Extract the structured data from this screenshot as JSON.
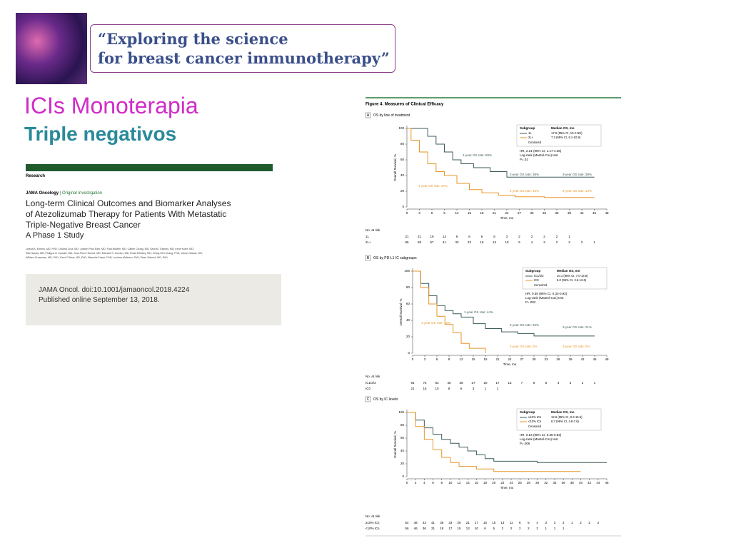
{
  "banner": {
    "quote_lines": [
      "“Exploring the science",
      "for breast cancer immunotherapy”"
    ]
  },
  "header": {
    "title": "ICIs Monoterapia",
    "subtitle": "Triple negativos"
  },
  "article": {
    "section": "Research",
    "journal": "JAMA Oncology",
    "category": "Original Investigation",
    "title_lines": [
      "Long-term Clinical Outcomes and Biomarker Analyses",
      "of Atezolizumab Therapy for Patients With Metastatic",
      "Triple-Negative Breast Cancer"
    ],
    "subtitle": "A Phase 1 Study",
    "authors": [
      "Leisha A. Emens, MD, PhD; Cristina Cruz, MD; Joseph Paul Eder, MD; Fadi Braiteh, MD; Cathie Chung, MD; Sara M. Tolaney, MD; Irene Kuter, MD;",
      "Rita Nanda, MD; Philippe A. Cassier, MD; Jean-Pierre Delord, MD; Michael S. Gordon, MD; Ehab ElGabry, MD; Ching-Wei Chang, PhD; Indrani Sarkar, MS;",
      "William Grossman, MD, PhD; Carol O'Hear, MD, PhD; Marcella Fassò, PhD; Luciana Molinero, PhD; Peter Schmid, MD, PhD"
    ],
    "citation": "JAMA Oncol. doi:10.1001/jamaoncol.2018.4224",
    "published": "Published online September 13, 2018."
  },
  "figure": {
    "title": "Figure 4. Measures of Clinical Efficacy",
    "x_label": "Time, mo",
    "y_label": "Overall Survival, %",
    "at_risk_label": "No. at risk",
    "legend_header": [
      "Subgroup",
      "Median OS, mo"
    ],
    "censored": "Censored",
    "test": "Log-rank (Mantel-Cox) test",
    "panels": [
      {
        "letter": "A",
        "title": "OS by line of treatment",
        "xlim": [
          0,
          48
        ],
        "xticks": [
          0,
          3,
          6,
          9,
          12,
          15,
          18,
          21,
          24,
          27,
          30,
          33,
          36,
          39,
          42,
          45,
          48
        ],
        "ylim": [
          0,
          100
        ],
        "yticks": [
          0,
          20,
          40,
          60,
          80,
          100
        ],
        "series": [
          {
            "name": "1L",
            "median": "17.6 (95% CI, 10.2-NE)",
            "color": "#3d5a5a",
            "x": [
              0,
              3,
              5,
              7,
              9,
              11,
              13,
              16,
              20,
              24,
              45
            ],
            "values": [
              100,
              100,
              90,
              80,
              70,
              60,
              55,
              50,
              45,
              38,
              38
            ],
            "at_risk": [
              21,
              21,
              19,
              14,
              9,
              8,
              6,
              5,
              3,
              2,
              2,
              2,
              2,
              1
            ]
          },
          {
            "name": "2L+",
            "median": "7.3 (95% CI, 6.1-10.8)",
            "color": "#e8962a",
            "x": [
              0,
              1,
              3,
              5,
              7,
              9,
              12,
              15,
              18,
              22,
              26,
              33,
              45
            ],
            "values": [
              100,
              85,
              70,
              55,
              45,
              40,
              30,
              22,
              18,
              15,
              13,
              12,
              12
            ],
            "at_risk": [
              95,
              69,
              57,
              41,
              33,
              23,
              16,
              13,
              10,
              5,
              4,
              3,
              2,
              2,
              2,
              1
            ]
          }
        ],
        "hr": "HR, 2.21 (95% CI, 1.17-4.36)",
        "p": "P=.01",
        "annotations": [
          "1-year OS rate: 59%",
          "1-year OS rate: 37%",
          "2-year OS rate: 38%",
          "2-year OS rate: 15%",
          "3-year OS rate: 38%",
          "3-year OS rate: 12%"
        ]
      },
      {
        "letter": "B",
        "title": "OS by PD-L1 IC subgroups",
        "xlim": [
          0,
          48
        ],
        "xticks": [
          0,
          3,
          6,
          9,
          12,
          15,
          18,
          21,
          24,
          27,
          30,
          33,
          36,
          39,
          42,
          45,
          48
        ],
        "ylim": [
          0,
          100
        ],
        "yticks": [
          0,
          20,
          40,
          60,
          80,
          100
        ],
        "series": [
          {
            "name": "IC1/2/3",
            "median": "10.1 (95% CI, 7.0-13.8)",
            "color": "#3d5a5a",
            "x": [
              0,
              2,
              4,
              6,
              8,
              10,
              12,
              15,
              18,
              22,
              26,
              30,
              45
            ],
            "values": [
              100,
              85,
              70,
              58,
              52,
              48,
              44,
              36,
              30,
              26,
              24,
              21,
              21
            ],
            "at_risk": [
              91,
              72,
              63,
              45,
              35,
              27,
              20,
              17,
              13,
              7,
              6,
              5,
              4,
              3,
              2,
              1
            ]
          },
          {
            "name": "IC0",
            "median": "6.0 (95% CI, 2.6-12.6)",
            "color": "#e8962a",
            "x": [
              0,
              2,
              4,
              6,
              8,
              10,
              12,
              14,
              16,
              18
            ],
            "values": [
              100,
              80,
              60,
              45,
              35,
              25,
              12,
              6,
              6,
              0
            ],
            "at_risk": [
              21,
              15,
              10,
              8,
              6,
              3,
              1,
              1
            ]
          }
        ],
        "hr": "HR, 0.55 (95% CI, 0.33-0.92)",
        "p": "P=.002",
        "annotations": [
          "1-year OS rate: 44%",
          "1-year OS rate: 12%",
          "2-year OS rate: 25%",
          "2-year OS rate: 0%",
          "3-year OS rate: 21%",
          "3-year OS rate: 0%"
        ]
      },
      {
        "letter": "C",
        "title": "OS by IC levels",
        "xlim": [
          0,
          46
        ],
        "xticks": [
          0,
          2,
          4,
          6,
          8,
          10,
          12,
          14,
          16,
          18,
          20,
          22,
          24,
          26,
          28,
          30,
          32,
          34,
          36,
          38,
          40,
          42,
          44,
          46
        ],
        "ylim": [
          0,
          100
        ],
        "yticks": [
          0,
          20,
          40,
          60,
          80,
          100
        ],
        "series": [
          {
            "name": "≥10% ICs",
            "median": "12.6 (95% CI, 9.3-15.5)",
            "color": "#3d5a5a",
            "x": [
              0,
              2,
              4,
              6,
              8,
              10,
              12,
              14,
              16,
              18,
              20,
              24,
              30,
              46
            ],
            "values": [
              100,
              88,
              76,
              66,
              58,
              52,
              46,
              40,
              34,
              28,
              24,
              24,
              22,
              22
            ],
            "at_risk": [
              54,
              48,
              43,
              41,
              36,
              33,
              26,
              21,
              17,
              15,
              15,
              13,
              11,
              6,
              5,
              4,
              3,
              3,
              3,
              1,
              2,
              2,
              2
            ]
          },
          {
            "name": "<10% ICs",
            "median": "6.7 (95% CI, 4.9-7.6)",
            "color": "#e8962a",
            "x": [
              0,
              2,
              4,
              6,
              8,
              10,
              12,
              16,
              20,
              40
            ],
            "values": [
              100,
              78,
              58,
              42,
              30,
              22,
              16,
              12,
              8,
              8
            ],
            "at_risk": [
              56,
              46,
              36,
              31,
              19,
              17,
              15,
              13,
              10,
              6,
              5,
              2,
              2,
              2,
              2,
              2,
              1,
              1,
              1
            ]
          }
        ],
        "hr": "HR, 0.54 (95% CI, 0.35-0.83)",
        "p": "P=.006",
        "annotations": []
      }
    ]
  }
}
